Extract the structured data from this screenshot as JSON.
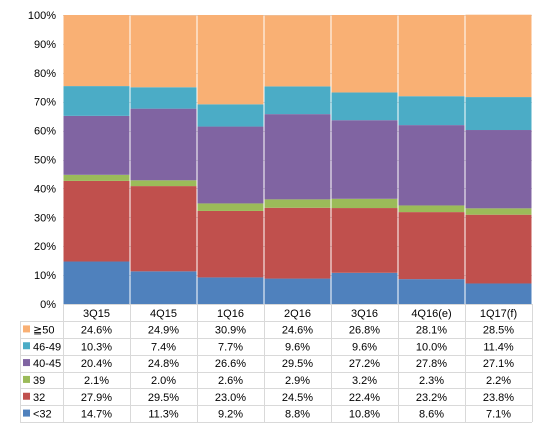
{
  "chart_data": {
    "type": "bar",
    "stacked": true,
    "categories": [
      "3Q15",
      "4Q15",
      "1Q16",
      "2Q16",
      "3Q16",
      "4Q16(e)",
      "1Q17(f)"
    ],
    "ylim": [
      0,
      100
    ],
    "yticks": [
      "0%",
      "10%",
      "20%",
      "30%",
      "40%",
      "50%",
      "60%",
      "70%",
      "80%",
      "90%",
      "100%"
    ],
    "grid": true,
    "legend_placement": "data table below chart",
    "series": [
      {
        "name": "<32",
        "color": "#4f81bd",
        "values": [
          14.7,
          11.3,
          9.2,
          8.8,
          10.8,
          8.6,
          7.1
        ],
        "labels": [
          "14.7%",
          "11.3%",
          "9.2%",
          "8.8%",
          "10.8%",
          "8.6%",
          "7.1%"
        ]
      },
      {
        "name": "32",
        "color": "#c0504d",
        "values": [
          27.9,
          29.5,
          23.0,
          24.5,
          22.4,
          23.2,
          23.8
        ],
        "labels": [
          "27.9%",
          "29.5%",
          "23.0%",
          "24.5%",
          "22.4%",
          "23.2%",
          "23.8%"
        ]
      },
      {
        "name": "39",
        "color": "#9bbb59",
        "values": [
          2.1,
          2.0,
          2.6,
          2.9,
          3.2,
          2.3,
          2.2
        ],
        "labels": [
          "2.1%",
          "2.0%",
          "2.6%",
          "2.9%",
          "3.2%",
          "2.3%",
          "2.2%"
        ]
      },
      {
        "name": "40-45",
        "color": "#8064a2",
        "values": [
          20.4,
          24.8,
          26.6,
          29.5,
          27.2,
          27.8,
          27.1
        ],
        "labels": [
          "20.4%",
          "24.8%",
          "26.6%",
          "29.5%",
          "27.2%",
          "27.8%",
          "27.1%"
        ]
      },
      {
        "name": "46-49",
        "color": "#4bacc6",
        "values": [
          10.3,
          7.4,
          7.7,
          9.6,
          9.6,
          10.0,
          11.4
        ],
        "labels": [
          "10.3%",
          "7.4%",
          "7.7%",
          "9.6%",
          "9.6%",
          "10.0%",
          "11.4%"
        ]
      },
      {
        "name": "≧50",
        "color": "#f9b074",
        "values": [
          24.6,
          24.9,
          30.9,
          24.6,
          26.8,
          28.1,
          28.5
        ],
        "labels": [
          "24.6%",
          "24.9%",
          "30.9%",
          "24.6%",
          "26.8%",
          "28.1%",
          "28.5%"
        ]
      }
    ]
  }
}
